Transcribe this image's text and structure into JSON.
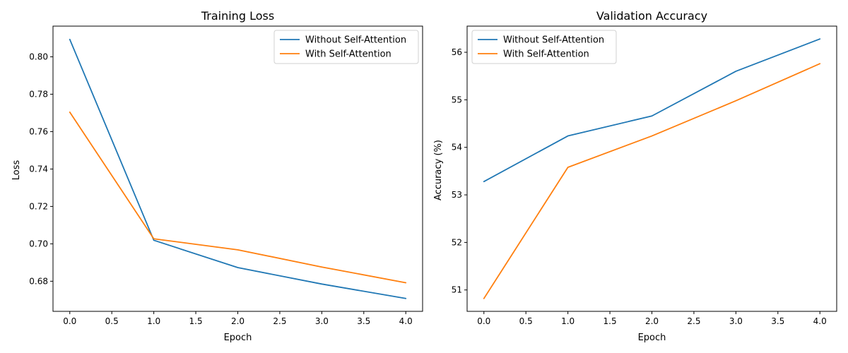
{
  "chart_data": [
    {
      "type": "line",
      "title": "Training Loss",
      "xlabel": "Epoch",
      "ylabel": "Loss",
      "x": [
        0,
        1,
        2,
        3,
        4
      ],
      "xlim": [
        -0.2,
        4.2
      ],
      "ylim": [
        0.6639,
        0.8164
      ],
      "xticks": [
        0.0,
        0.5,
        1.0,
        1.5,
        2.0,
        2.5,
        3.0,
        3.5,
        4.0
      ],
      "xtick_labels": [
        "0.0",
        "0.5",
        "1.0",
        "1.5",
        "2.0",
        "2.5",
        "3.0",
        "3.5",
        "4.0"
      ],
      "yticks": [
        0.68,
        0.7,
        0.72,
        0.74,
        0.76,
        0.78,
        0.8
      ],
      "ytick_labels": [
        "0.68",
        "0.70",
        "0.72",
        "0.74",
        "0.76",
        "0.78",
        "0.80"
      ],
      "legend_position": "top-right",
      "grid": false,
      "series": [
        {
          "name": "Without Self-Attention",
          "color": "#1f77b4",
          "values": [
            0.8093,
            0.7019,
            0.6873,
            0.6785,
            0.6708
          ]
        },
        {
          "name": "With Self-Attention",
          "color": "#ff7f0e",
          "values": [
            0.7704,
            0.7027,
            0.6968,
            0.6876,
            0.6792
          ]
        }
      ]
    },
    {
      "type": "line",
      "title": "Validation Accuracy",
      "xlabel": "Epoch",
      "ylabel": "Accuracy (%)",
      "x": [
        0,
        1,
        2,
        3,
        4
      ],
      "xlim": [
        -0.2,
        4.2
      ],
      "ylim": [
        50.55,
        56.55
      ],
      "xticks": [
        0.0,
        0.5,
        1.0,
        1.5,
        2.0,
        2.5,
        3.0,
        3.5,
        4.0
      ],
      "xtick_labels": [
        "0.0",
        "0.5",
        "1.0",
        "1.5",
        "2.0",
        "2.5",
        "3.0",
        "3.5",
        "4.0"
      ],
      "yticks": [
        51,
        52,
        53,
        54,
        55,
        56
      ],
      "ytick_labels": [
        "51",
        "52",
        "53",
        "54",
        "55",
        "56"
      ],
      "legend_position": "top-left",
      "grid": false,
      "series": [
        {
          "name": "Without Self-Attention",
          "color": "#1f77b4",
          "values": [
            53.28,
            54.24,
            54.66,
            55.6,
            56.28
          ]
        },
        {
          "name": "With Self-Attention",
          "color": "#ff7f0e",
          "values": [
            50.82,
            53.58,
            54.24,
            54.98,
            55.76
          ]
        }
      ]
    }
  ]
}
